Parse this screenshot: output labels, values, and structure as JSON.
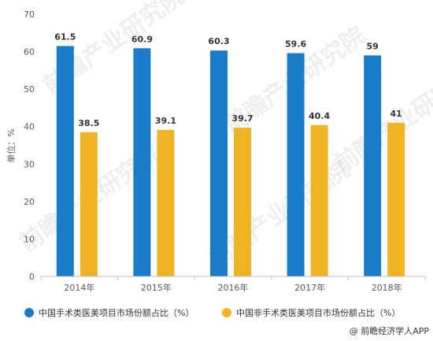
{
  "chart_data": {
    "type": "bar",
    "categories": [
      "2014年",
      "2015年",
      "2016年",
      "2017年",
      "2018年"
    ],
    "series": [
      {
        "name": "中国手术类医美项目市场份额占比（%）",
        "color": "#1a7cc9",
        "values": [
          61.5,
          60.9,
          60.3,
          59.6,
          59
        ]
      },
      {
        "name": "中国非手术类医美项目市场份额占比（%）",
        "color": "#f0b323",
        "values": [
          38.5,
          39.1,
          39.7,
          40.4,
          41
        ]
      }
    ],
    "ylabel": "单位：%",
    "ylim": [
      0,
      70
    ],
    "yticks": [
      0,
      10,
      20,
      30,
      40,
      50,
      60,
      70
    ],
    "grid": false,
    "legend_position": "bottom"
  },
  "credit": {
    "icon": "at-icon",
    "text": "@ 前瞻经济学人APP"
  },
  "watermark": {
    "text": "前瞻产业研究院"
  }
}
